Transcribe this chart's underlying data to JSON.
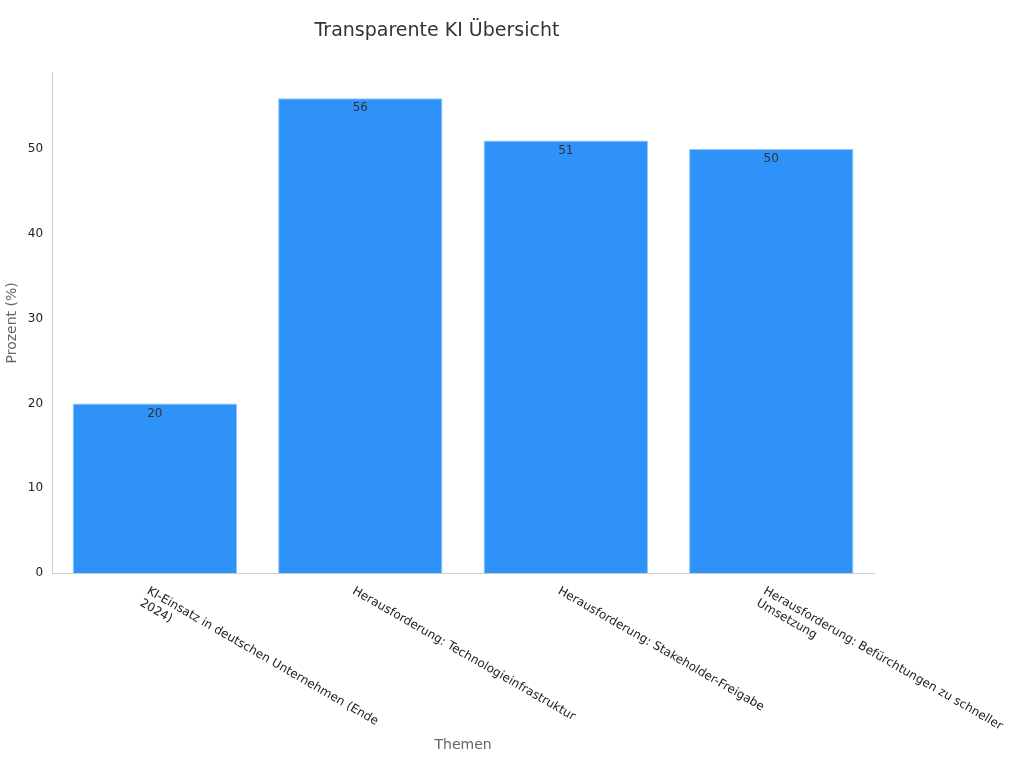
{
  "chart_data": {
    "type": "bar",
    "title": "Transparente KI Übersicht",
    "xlabel": "Themen",
    "ylabel": "Prozent (%)",
    "categories": [
      "KI-Einsatz in deutschen Unternehmen (Ende 2024)",
      "Herausforderung: Technologieinfrastruktur",
      "Herausforderung: Stakeholder-Freigabe",
      "Herausforderung: Befürchtungen zu schneller Umsetzung"
    ],
    "values": [
      20,
      56,
      51,
      50
    ],
    "color": "#2e92f9",
    "ylim": [
      0,
      59
    ],
    "yticks": [
      0,
      10,
      20,
      30,
      40,
      50
    ],
    "grid": false,
    "data_labels": true,
    "legend": false
  }
}
